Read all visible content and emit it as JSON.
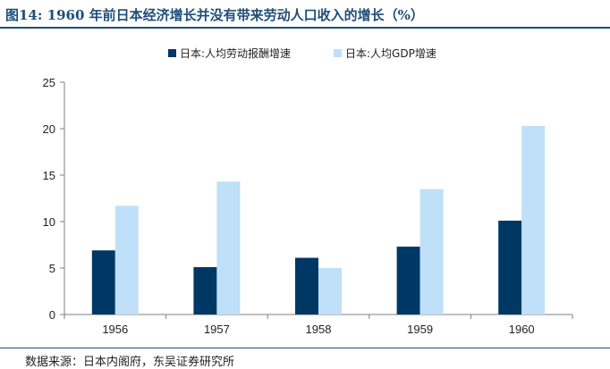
{
  "header": {
    "title": "图14:  1960 年前日本经济增长并没有带来劳动人口收入的增长（%）"
  },
  "footer": {
    "source": "数据来源：日本内阁府，东吴证券研究所"
  },
  "colors": {
    "series1": "#003865",
    "series2": "#bfe0f8",
    "rule": "#1f4e79",
    "axis": "#7f7f7f"
  },
  "chart_data": {
    "type": "bar",
    "categories": [
      "1956",
      "1957",
      "1958",
      "1959",
      "1960"
    ],
    "series": [
      {
        "name": "日本:人均劳动报酬增速",
        "values": [
          6.9,
          5.1,
          6.1,
          7.3,
          10.1
        ]
      },
      {
        "name": "日本:人均GDP增速",
        "values": [
          11.7,
          14.3,
          5.0,
          13.5,
          20.3
        ]
      }
    ],
    "ylim": [
      0,
      25
    ],
    "yticks": [
      "0",
      "5",
      "10",
      "15",
      "20",
      "25"
    ],
    "grid": false,
    "legend": "top-center"
  }
}
